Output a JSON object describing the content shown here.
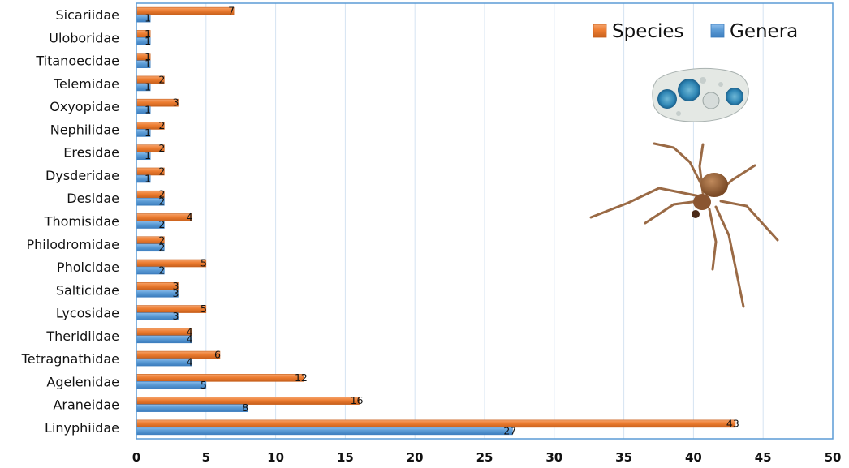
{
  "chart_data": {
    "type": "bar",
    "orientation": "horizontal",
    "categories": [
      "Sicariidae",
      "Uloboridae",
      "Titanoecidae",
      "Telemidae",
      "Oxyopidae",
      "Nephilidae",
      "Eresidae",
      "Dysderidae",
      "Desidae",
      "Thomisidae",
      "Philodromidae",
      "Pholcidae",
      "Salticidae",
      "Lycosidae",
      "Theridiidae",
      "Tetragnathidae",
      "Agelenidae",
      "Araneidae",
      "Linyphiidae"
    ],
    "series": [
      {
        "name": "Species",
        "color": "#ED7D31",
        "values": [
          7,
          1,
          1,
          2,
          3,
          2,
          2,
          2,
          2,
          4,
          2,
          5,
          3,
          5,
          4,
          6,
          12,
          16,
          43
        ]
      },
      {
        "name": "Genera",
        "color": "#5B9BD5",
        "values": [
          1,
          1,
          1,
          1,
          1,
          1,
          1,
          1,
          2,
          2,
          2,
          2,
          3,
          3,
          4,
          4,
          5,
          8,
          27
        ]
      }
    ],
    "xlim": [
      0,
      50
    ],
    "xticks": [
      "0",
      "5",
      "10",
      "15",
      "20",
      "25",
      "30",
      "35",
      "40",
      "45",
      "50"
    ],
    "grid": "vertical",
    "legend_position": "top-right",
    "title": "",
    "xlabel": "",
    "ylabel": "",
    "data_labels": true
  }
}
